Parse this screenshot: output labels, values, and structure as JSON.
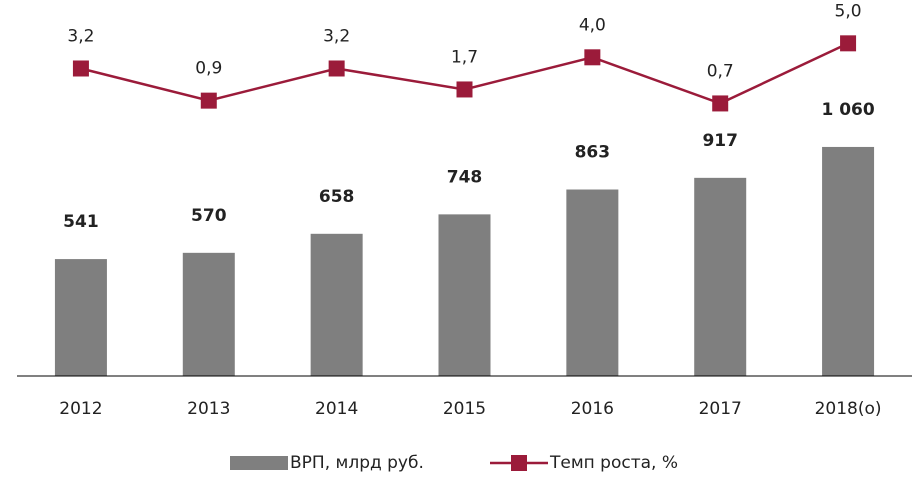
{
  "chart_data": {
    "type": "bar-line",
    "categories": [
      "2012",
      "2013",
      "2014",
      "2015",
      "2016",
      "2017",
      "2018(о)"
    ],
    "series": [
      {
        "name": "ВРП, млрд руб.",
        "type": "bar",
        "color": "#7f7f7f",
        "values": [
          541,
          570,
          658,
          748,
          863,
          917,
          1060
        ],
        "value_labels": [
          "541",
          "570",
          "658",
          "748",
          "863",
          "917",
          "1 060"
        ]
      },
      {
        "name": "Темп роста, %",
        "type": "line",
        "axis": "y2",
        "color": "#9b1b3a",
        "values": [
          3.2,
          0.9,
          3.2,
          1.7,
          4.0,
          0.7,
          5.0
        ],
        "value_labels": [
          "3,2",
          "0,9",
          "3,2",
          "1,7",
          "4,0",
          "0,7",
          "5,0"
        ]
      }
    ],
    "ylim": [
      0,
      1740
    ],
    "y2lim": [
      -18.8,
      8.1
    ],
    "legend": "bottom"
  }
}
